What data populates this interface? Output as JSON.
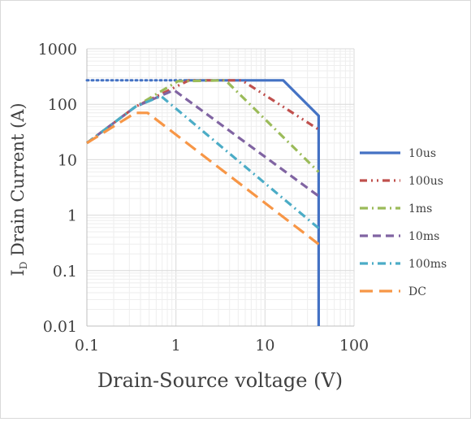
{
  "chart_data": {
    "type": "line",
    "title": "",
    "xlabel": "Drain-Source voltage (V)",
    "ylabel": "I_D Drain Current (A)",
    "ylabel_main": "I",
    "ylabel_sub": "D",
    "ylabel_rest": " Drain Current (A)",
    "x_scale": "log",
    "y_scale": "log",
    "xlim": [
      0.1,
      100
    ],
    "ylim": [
      0.01,
      1000
    ],
    "x_ticks": [
      0.1,
      1,
      10,
      100
    ],
    "x_tick_labels": [
      "0.1",
      "1",
      "10",
      "100"
    ],
    "y_ticks": [
      0.01,
      0.1,
      1,
      10,
      100,
      1000
    ],
    "y_tick_labels": [
      "0.01",
      "0.1",
      "1",
      "10",
      "100",
      "1000"
    ],
    "grid": true,
    "legend_position": "right",
    "series": [
      {
        "name": "10us",
        "color": "#4472c4",
        "dash": "solid",
        "x": [
          0.1,
          0.35,
          1.3,
          16,
          40,
          40
        ],
        "y": [
          270,
          270,
          270,
          270,
          62,
          0.01
        ]
      },
      {
        "name": "100us",
        "color": "#c0504d",
        "dash": "dash-dot-dot",
        "x": [
          0.1,
          0.35,
          1.4,
          5.5,
          40
        ],
        "y": [
          20,
          90,
          270,
          270,
          35
        ]
      },
      {
        "name": "1ms",
        "color": "#9bbb59",
        "dash": "dash-dot",
        "x": [
          0.1,
          0.35,
          1.05,
          3.6,
          40
        ],
        "y": [
          20,
          90,
          260,
          270,
          6
        ]
      },
      {
        "name": "10ms",
        "color": "#8064a2",
        "dash": "dash",
        "x": [
          0.1,
          0.35,
          0.95,
          40
        ],
        "y": [
          20,
          90,
          180,
          2.2
        ]
      },
      {
        "name": "100ms",
        "color": "#4bacc6",
        "dash": "dash-dot",
        "x": [
          0.1,
          0.35,
          0.68,
          40
        ],
        "y": [
          20,
          90,
          140,
          0.58
        ]
      },
      {
        "name": "DC",
        "color": "#f79646",
        "dash": "long-dash",
        "x": [
          0.1,
          0.35,
          0.48,
          40
        ],
        "y": [
          20,
          70,
          70,
          0.3
        ]
      }
    ]
  }
}
